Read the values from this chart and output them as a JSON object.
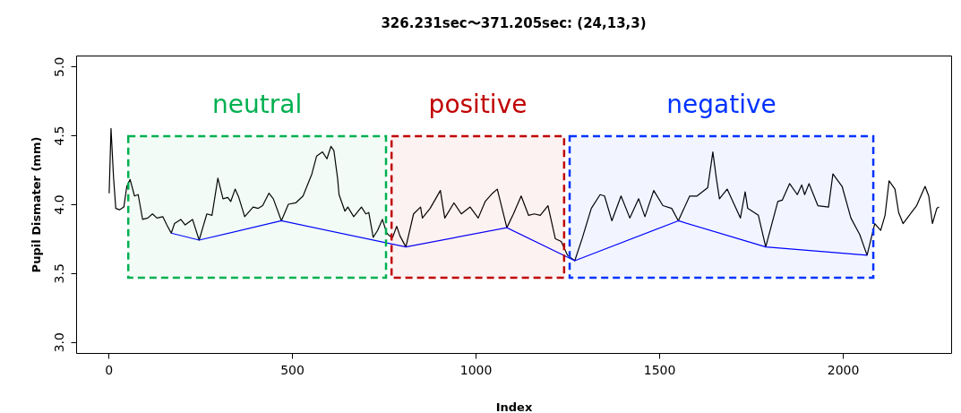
{
  "chart_data": {
    "type": "line",
    "title": "326.231sec〜371.205sec: (24,13,3)",
    "xlabel": "Index",
    "ylabel": "Pupil Dismater (mm)",
    "xlim": [
      -88,
      2295
    ],
    "ylim": [
      2.92,
      5.08
    ],
    "xticks": [
      0,
      500,
      1000,
      1500,
      2000
    ],
    "yticks": [
      {
        "value": 3,
        "label": "3.0"
      },
      {
        "value": 3.5,
        "label": "3.5"
      },
      {
        "value": 4,
        "label": "4.0"
      },
      {
        "value": 4.5,
        "label": "4.5"
      },
      {
        "value": 5,
        "label": "5.0"
      }
    ],
    "grid": false,
    "series": [
      {
        "color": "#000000",
        "x": [
          2,
          7,
          14,
          20,
          30,
          42,
          50,
          59,
          71,
          81,
          93,
          107,
          120,
          132,
          148,
          159,
          171,
          180,
          197,
          209,
          229,
          247,
          268,
          282,
          298,
          312,
          325,
          333,
          345,
          355,
          371,
          394,
          408,
          420,
          437,
          449,
          471,
          490,
          510,
          530,
          554,
          567,
          583,
          595,
          606,
          614,
          624,
          628,
          644,
          652,
          668,
          689,
          701,
          709,
          721,
          733,
          746,
          758,
          766,
          774,
          785,
          794,
          810,
          831,
          850,
          855,
          876,
          904,
          916,
          941,
          961,
          985,
          1007,
          1026,
          1046,
          1059,
          1085,
          1103,
          1124,
          1144,
          1160,
          1176,
          1197,
          1217,
          1233,
          1250,
          1270,
          1290,
          1315,
          1339,
          1351,
          1371,
          1396,
          1420,
          1444,
          1461,
          1485,
          1510,
          1534,
          1552,
          1583,
          1603,
          1632,
          1646,
          1656,
          1664,
          1685,
          1721,
          1734,
          1741,
          1770,
          1790,
          1823,
          1835,
          1855,
          1876,
          1888,
          1896,
          1908,
          1932,
          1961,
          1973,
          1998,
          2022,
          2046,
          2066,
          2087,
          2103,
          2115,
          2126,
          2142,
          2152,
          2164,
          2201,
          2224,
          2234,
          2244,
          2256,
          2262
        ],
        "values": [
          4.08,
          4.55,
          4.19,
          3.97,
          3.96,
          3.98,
          4.13,
          4.18,
          4.06,
          4.07,
          3.89,
          3.9,
          3.93,
          3.9,
          3.91,
          3.85,
          3.79,
          3.86,
          3.89,
          3.85,
          3.89,
          3.74,
          3.93,
          3.92,
          4.19,
          4.04,
          4.05,
          4.02,
          4.11,
          4.05,
          3.91,
          3.98,
          3.97,
          3.99,
          4.08,
          4.04,
          3.88,
          4.0,
          4.01,
          4.06,
          4.22,
          4.35,
          4.38,
          4.33,
          4.42,
          4.39,
          4.19,
          4.07,
          3.95,
          3.98,
          3.91,
          3.98,
          3.93,
          3.94,
          3.76,
          3.81,
          3.89,
          3.79,
          3.77,
          3.76,
          3.84,
          3.77,
          3.69,
          3.93,
          3.98,
          3.9,
          3.97,
          4.1,
          3.9,
          4.01,
          3.93,
          3.98,
          3.9,
          4.02,
          4.08,
          4.11,
          3.83,
          3.93,
          4.06,
          3.92,
          3.93,
          3.92,
          3.99,
          3.75,
          3.73,
          3.63,
          3.59,
          3.75,
          3.97,
          4.07,
          4.06,
          3.88,
          4.06,
          3.9,
          4.04,
          3.91,
          4.1,
          3.99,
          3.97,
          3.88,
          4.06,
          4.06,
          4.12,
          4.38,
          4.18,
          4.04,
          4.11,
          3.9,
          4.09,
          3.97,
          3.92,
          3.69,
          4.02,
          4.03,
          4.15,
          4.07,
          4.14,
          4.07,
          4.15,
          3.99,
          3.98,
          4.22,
          4.13,
          3.9,
          3.78,
          3.63,
          3.86,
          3.81,
          3.92,
          4.17,
          4.11,
          3.94,
          3.86,
          3.99,
          4.13,
          4.06,
          3.86,
          3.97,
          3.98
        ]
      },
      {
        "color": "#0000ff",
        "x": [
          171,
          247,
          471,
          810,
          1085,
          1270,
          1552,
          1790,
          2066
        ],
        "values": [
          3.79,
          3.74,
          3.88,
          3.69,
          3.83,
          3.59,
          3.88,
          3.69,
          3.63
        ]
      }
    ],
    "bands": [
      {
        "axis": "x",
        "from": 54,
        "to": 756,
        "label": "neutral",
        "color": "#00b050"
      },
      {
        "axis": "x",
        "from": 771,
        "to": 1241,
        "label": "positive",
        "color": "#c00000"
      },
      {
        "axis": "x",
        "from": 1256,
        "to": 2083,
        "label": "negative",
        "color": "#0033ff"
      }
    ]
  }
}
